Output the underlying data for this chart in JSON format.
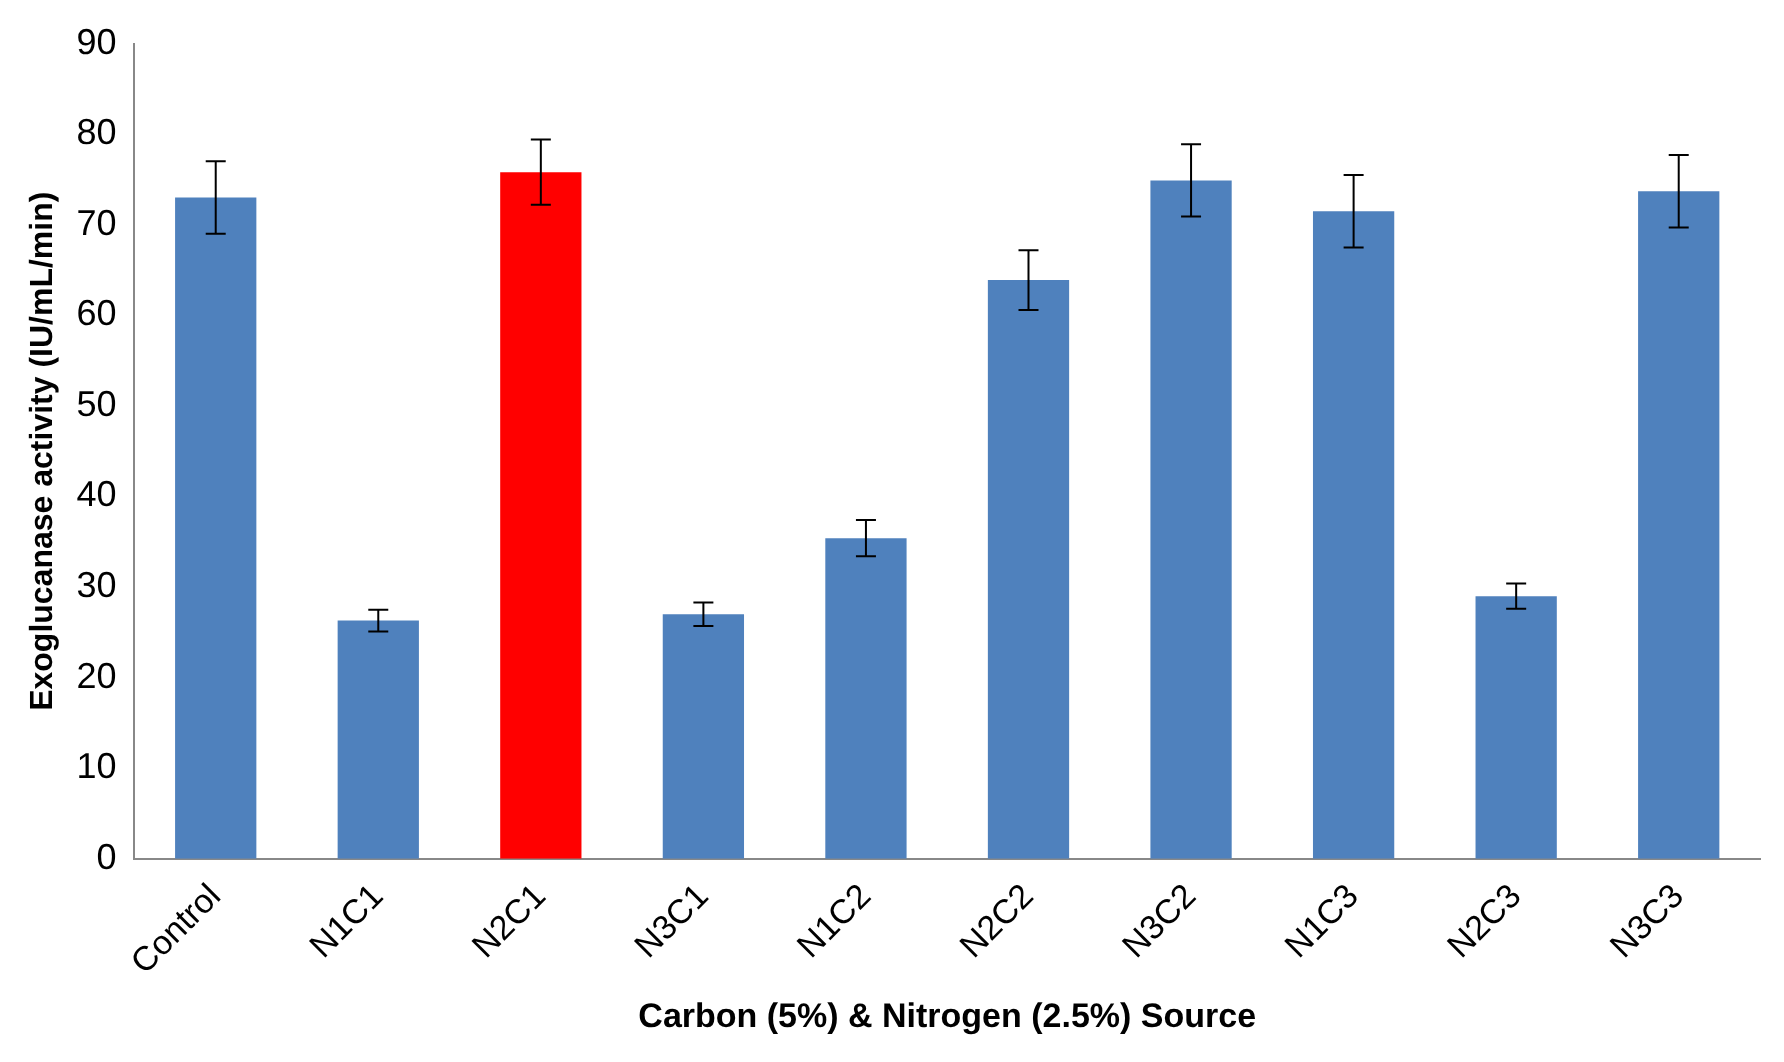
{
  "chart_data": {
    "type": "bar",
    "xlabel": "Carbon (5%) & Nitrogen (2.5%) Source",
    "ylabel": "Exoglucanase activity (IU/mL/min)",
    "categories": [
      "Control",
      "N1C1",
      "N2C1",
      "N3C1",
      "N1C2",
      "N2C2",
      "N3C2",
      "N1C3",
      "N2C3",
      "N3C3"
    ],
    "values": [
      73,
      26.3,
      75.8,
      27,
      35.4,
      63.9,
      74.9,
      71.5,
      29,
      73.7
    ],
    "colors": [
      "#4f81bd",
      "#4f81bd",
      "#ff0000",
      "#4f81bd",
      "#4f81bd",
      "#4f81bd",
      "#4f81bd",
      "#4f81bd",
      "#4f81bd",
      "#4f81bd"
    ],
    "errors": [
      4,
      1.2,
      3.6,
      1.3,
      2,
      3.3,
      4,
      4,
      1.4,
      4
    ],
    "ylim": [
      0,
      90
    ],
    "yticks": [
      0,
      10,
      20,
      30,
      40,
      50,
      60,
      70,
      80,
      90
    ]
  }
}
